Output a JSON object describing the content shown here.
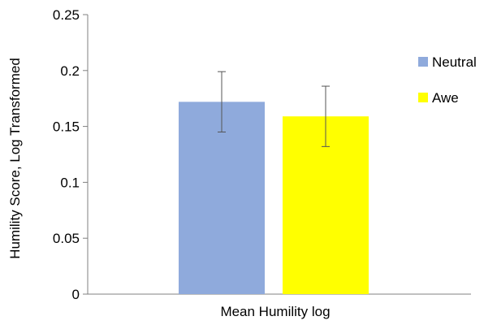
{
  "chart_data": {
    "type": "bar",
    "categories": [
      "Mean Humility log"
    ],
    "series": [
      {
        "name": "Neutral",
        "values": [
          0.172
        ],
        "error": [
          0.027
        ],
        "color": "#8faadc"
      },
      {
        "name": "Awe",
        "values": [
          0.159
        ],
        "error": [
          0.027
        ],
        "color": "#ffff00"
      }
    ],
    "xlabel": "Mean Humility log",
    "ylabel": "Humility Score, Log Transformed",
    "ylim": [
      0,
      0.25
    ],
    "yticks": [
      "0",
      "0.05",
      "0.1",
      "0.15",
      "0.2",
      "0.25"
    ],
    "yticks_values": [
      0,
      0.05,
      0.1,
      0.15,
      0.2,
      0.25
    ],
    "grid": false,
    "legend_position": "right"
  }
}
